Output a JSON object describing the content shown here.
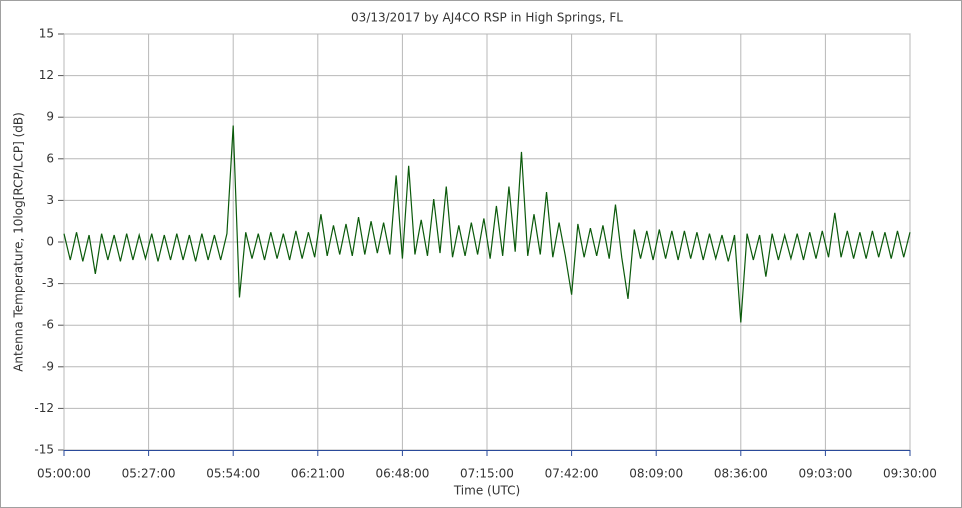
{
  "chart_data": {
    "type": "line",
    "title": "03/13/2017  by  AJ4CO RSP  in  High Springs, FL",
    "x_label": "Time (UTC)",
    "y_label": "Antenna Temperature, 10log[RCP/LCP] (dB)",
    "x": [
      "05:00:00",
      "05:02:00",
      "05:04:00",
      "05:06:00",
      "05:08:00",
      "05:10:00",
      "05:12:00",
      "05:14:00",
      "05:16:00",
      "05:18:00",
      "05:20:00",
      "05:22:00",
      "05:24:00",
      "05:26:00",
      "05:28:00",
      "05:30:00",
      "05:32:00",
      "05:34:00",
      "05:36:00",
      "05:38:00",
      "05:40:00",
      "05:42:00",
      "05:44:00",
      "05:46:00",
      "05:48:00",
      "05:50:00",
      "05:52:00",
      "05:54:00",
      "05:56:00",
      "05:58:00",
      "06:00:00",
      "06:02:00",
      "06:04:00",
      "06:06:00",
      "06:08:00",
      "06:10:00",
      "06:12:00",
      "06:14:00",
      "06:16:00",
      "06:18:00",
      "06:20:00",
      "06:22:00",
      "06:24:00",
      "06:26:00",
      "06:28:00",
      "06:30:00",
      "06:32:00",
      "06:34:00",
      "06:36:00",
      "06:38:00",
      "06:40:00",
      "06:42:00",
      "06:44:00",
      "06:46:00",
      "06:48:00",
      "06:50:00",
      "06:52:00",
      "06:54:00",
      "06:56:00",
      "06:58:00",
      "07:00:00",
      "07:02:00",
      "07:04:00",
      "07:06:00",
      "07:08:00",
      "07:10:00",
      "07:12:00",
      "07:14:00",
      "07:16:00",
      "07:18:00",
      "07:20:00",
      "07:22:00",
      "07:24:00",
      "07:26:00",
      "07:28:00",
      "07:30:00",
      "07:32:00",
      "07:34:00",
      "07:36:00",
      "07:38:00",
      "07:40:00",
      "07:42:00",
      "07:44:00",
      "07:46:00",
      "07:48:00",
      "07:50:00",
      "07:52:00",
      "07:54:00",
      "07:56:00",
      "07:58:00",
      "08:00:00",
      "08:02:00",
      "08:04:00",
      "08:06:00",
      "08:08:00",
      "08:10:00",
      "08:12:00",
      "08:14:00",
      "08:16:00",
      "08:18:00",
      "08:20:00",
      "08:22:00",
      "08:24:00",
      "08:26:00",
      "08:28:00",
      "08:30:00",
      "08:32:00",
      "08:34:00",
      "08:36:00",
      "08:38:00",
      "08:40:00",
      "08:42:00",
      "08:44:00",
      "08:46:00",
      "08:48:00",
      "08:50:00",
      "08:52:00",
      "08:54:00",
      "08:56:00",
      "08:58:00",
      "09:00:00",
      "09:02:00",
      "09:04:00",
      "09:06:00",
      "09:08:00",
      "09:10:00",
      "09:12:00",
      "09:14:00",
      "09:16:00",
      "09:18:00",
      "09:20:00",
      "09:22:00",
      "09:24:00",
      "09:26:00",
      "09:28:00",
      "09:30:00"
    ],
    "series": [
      {
        "color": "#0b5a0b",
        "values": [
          0.6,
          -1.3,
          0.7,
          -1.4,
          0.5,
          -2.3,
          0.6,
          -1.3,
          0.5,
          -1.4,
          0.6,
          -1.3,
          0.5,
          -1.2,
          0.6,
          -1.4,
          0.5,
          -1.3,
          0.6,
          -1.3,
          0.5,
          -1.4,
          0.6,
          -1.3,
          0.5,
          -1.3,
          0.6,
          8.4,
          -4.0,
          0.7,
          -1.2,
          0.6,
          -1.3,
          0.7,
          -1.2,
          0.6,
          -1.3,
          0.8,
          -1.2,
          0.7,
          -1.1,
          2.0,
          -1.0,
          1.2,
          -0.9,
          1.3,
          -1.0,
          1.8,
          -0.9,
          1.5,
          -0.8,
          1.4,
          -0.9,
          4.8,
          -1.2,
          5.5,
          -0.9,
          1.6,
          -1.0,
          3.1,
          -0.8,
          4.0,
          -1.1,
          1.2,
          -1.0,
          1.4,
          -0.9,
          1.7,
          -1.2,
          2.6,
          -1.0,
          4.0,
          -0.7,
          6.5,
          -1.0,
          2.0,
          -0.9,
          3.6,
          -1.1,
          1.4,
          -1.0,
          -3.8,
          1.3,
          -1.1,
          1.0,
          -1.0,
          1.2,
          -1.2,
          2.7,
          -1.1,
          -4.1,
          0.9,
          -1.2,
          0.8,
          -1.3,
          0.9,
          -1.2,
          0.8,
          -1.3,
          0.8,
          -1.2,
          0.7,
          -1.3,
          0.6,
          -1.2,
          0.5,
          -1.4,
          0.5,
          -5.8,
          0.6,
          -1.3,
          0.5,
          -2.5,
          0.6,
          -1.3,
          0.5,
          -1.2,
          0.6,
          -1.3,
          0.7,
          -1.2,
          0.8,
          -1.1,
          2.1,
          -1.1,
          0.8,
          -1.2,
          0.7,
          -1.2,
          0.8,
          -1.1,
          0.7,
          -1.2,
          0.8,
          -1.1,
          0.7
        ]
      }
    ],
    "xlim": [
      "05:00:00",
      "09:30:00"
    ],
    "xticks": [
      "05:00:00",
      "05:27:00",
      "05:54:00",
      "06:21:00",
      "06:48:00",
      "07:15:00",
      "07:42:00",
      "08:09:00",
      "08:36:00",
      "09:03:00",
      "09:30:00"
    ],
    "ylim": [
      -15,
      15
    ],
    "yticks": [
      -15,
      -12,
      -9,
      -6,
      -3,
      0,
      3,
      6,
      9,
      12,
      15
    ],
    "grid": true
  }
}
